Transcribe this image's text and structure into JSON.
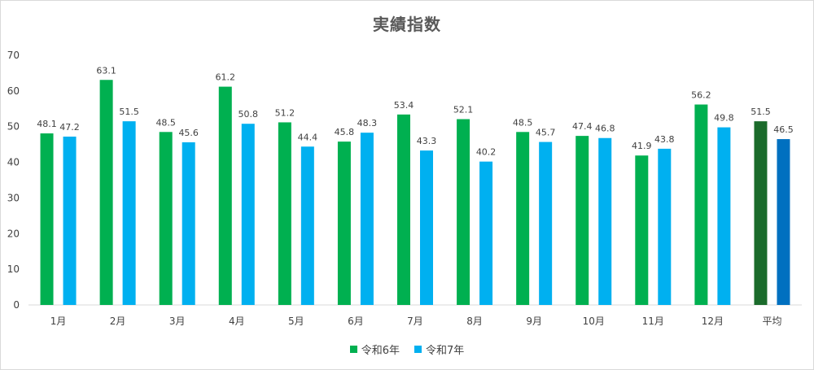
{
  "colors": {
    "series1": "#00b050",
    "series2": "#00b0f0",
    "avg1": "#1b6b2b",
    "avg2": "#0070c0",
    "grid": "#d9d9d9",
    "axis_text": "#404040"
  },
  "chart_data": {
    "type": "bar",
    "title": "実績指数",
    "categories": [
      "1月",
      "2月",
      "3月",
      "4月",
      "5月",
      "6月",
      "7月",
      "8月",
      "9月",
      "10月",
      "11月",
      "12月",
      "平均"
    ],
    "series": [
      {
        "name": "令和6年",
        "values": [
          48.1,
          63.1,
          48.5,
          61.2,
          51.2,
          45.8,
          53.4,
          52.1,
          48.5,
          47.4,
          41.9,
          56.2,
          51.5
        ]
      },
      {
        "name": "令和7年",
        "values": [
          47.2,
          51.5,
          45.6,
          50.8,
          44.4,
          48.3,
          43.3,
          40.2,
          45.7,
          46.8,
          43.8,
          49.8,
          46.5
        ]
      }
    ],
    "ylim": [
      0,
      70
    ],
    "yticks": [
      0,
      10,
      20,
      30,
      40,
      50,
      60,
      70
    ],
    "grid": false,
    "legend_position": "bottom",
    "data_labels": true
  }
}
